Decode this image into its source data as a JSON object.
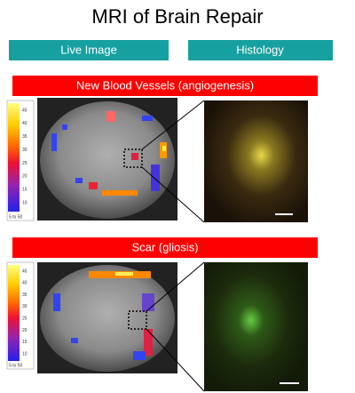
{
  "header": {
    "title": "MRI of Brain Repair"
  },
  "tabs": [
    "Live Image",
    "Histology"
  ],
  "panels": [
    {
      "label": "New Blood Vessels (angiogenesis)",
      "scale_ticks": [
        "45",
        "40",
        "35",
        "30",
        "25",
        "20",
        "15",
        "10"
      ],
      "scale_range": "5 to 50"
    },
    {
      "label": "Scar (gliosis)",
      "scale_ticks": [
        "45",
        "40",
        "35",
        "30",
        "25",
        "20",
        "15",
        "10"
      ],
      "scale_range": "5 to 50"
    }
  ]
}
